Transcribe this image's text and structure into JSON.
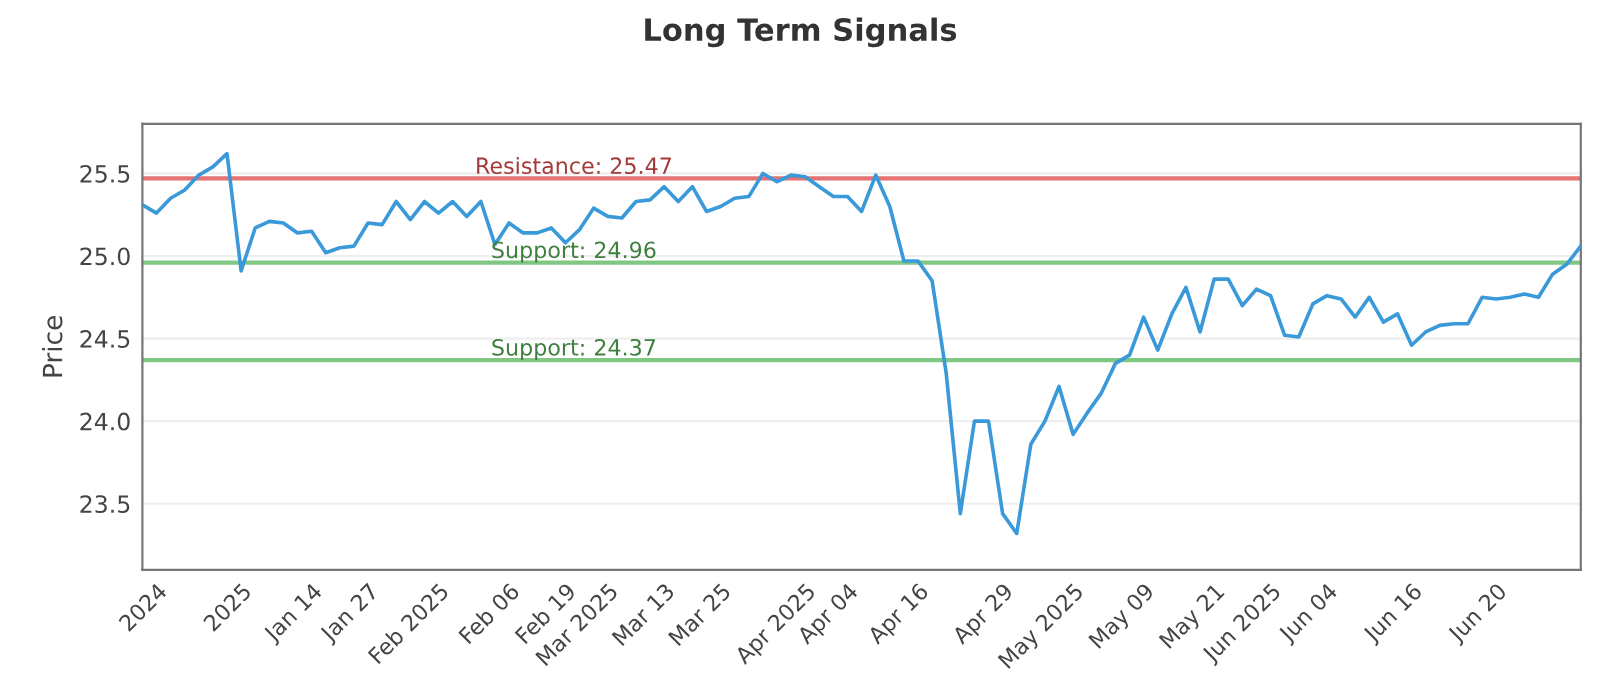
{
  "chart_data": {
    "type": "line",
    "title": "Long Term Signals",
    "ylabel": "Price",
    "categories": [
      null,
      "2024",
      null,
      null,
      null,
      null,
      null,
      "2025",
      null,
      null,
      null,
      null,
      "Jan 14",
      null,
      null,
      null,
      "Jan 27",
      null,
      null,
      null,
      null,
      "Feb 2025",
      null,
      null,
      null,
      null,
      "Feb 06",
      null,
      null,
      null,
      "Feb 19",
      null,
      null,
      "Mar 2025",
      null,
      null,
      null,
      "Mar 13",
      null,
      null,
      null,
      "Mar 25",
      null,
      null,
      null,
      null,
      null,
      "Apr 2025",
      null,
      null,
      "Apr 04",
      null,
      null,
      null,
      null,
      "Apr 16",
      null,
      null,
      null,
      null,
      null,
      "Apr 29",
      null,
      null,
      null,
      null,
      "May 2025",
      null,
      null,
      null,
      null,
      "May 09",
      null,
      null,
      null,
      null,
      "May 21",
      null,
      null,
      null,
      "Jun 2025",
      null,
      null,
      null,
      "Jun 04",
      null,
      null,
      null,
      null,
      null,
      "Jun 16",
      null,
      null,
      null,
      null,
      null,
      "Jun 20",
      null,
      null,
      null,
      null,
      null,
      null
    ],
    "series": [
      {
        "color": "#3a9ad9",
        "values": [
          25.31,
          25.26,
          25.35,
          25.4,
          25.49,
          25.54,
          25.62,
          24.91,
          25.17,
          25.21,
          25.2,
          25.14,
          25.15,
          25.02,
          25.05,
          25.06,
          25.2,
          25.19,
          25.33,
          25.22,
          25.33,
          25.26,
          25.33,
          25.24,
          25.33,
          25.07,
          25.2,
          25.14,
          25.14,
          25.17,
          25.08,
          25.16,
          25.29,
          25.24,
          25.23,
          25.33,
          25.34,
          25.42,
          25.33,
          25.42,
          25.27,
          25.3,
          25.35,
          25.36,
          25.5,
          25.45,
          25.49,
          25.48,
          25.42,
          25.36,
          25.36,
          25.27,
          25.49,
          25.3,
          24.97,
          24.97,
          24.85,
          24.29,
          23.44,
          24.0,
          24.0,
          23.44,
          23.32,
          23.86,
          24.0,
          24.21,
          23.92,
          24.05,
          24.17,
          24.35,
          24.4,
          24.63,
          24.43,
          24.65,
          24.81,
          24.54,
          24.86,
          24.86,
          24.7,
          24.8,
          24.76,
          24.52,
          24.51,
          24.71,
          24.76,
          24.74,
          24.63,
          24.75,
          24.6,
          24.65,
          24.46,
          24.54,
          24.58,
          24.59,
          24.59,
          24.75,
          24.74,
          24.75,
          24.77,
          24.75,
          24.89,
          24.95,
          25.06
        ]
      }
    ],
    "ylim": [
      23.1,
      25.8
    ],
    "yticks": [
      {
        "value": 23.5,
        "label": "23.5"
      },
      {
        "value": 24.0,
        "label": "24.0"
      },
      {
        "value": 24.5,
        "label": "24.5"
      },
      {
        "value": 25.0,
        "label": "25.0"
      },
      {
        "value": 25.5,
        "label": "25.5"
      }
    ],
    "grid": "y",
    "ref_lines": [
      {
        "axis": "y",
        "value": 25.47,
        "label": "Resistance: 25.47",
        "color": "#e57373"
      },
      {
        "axis": "y",
        "value": 24.96,
        "label": "Support: 24.96",
        "color": "#81c784"
      },
      {
        "axis": "y",
        "value": 24.37,
        "label": "Support: 24.37",
        "color": "#81c784"
      }
    ]
  }
}
